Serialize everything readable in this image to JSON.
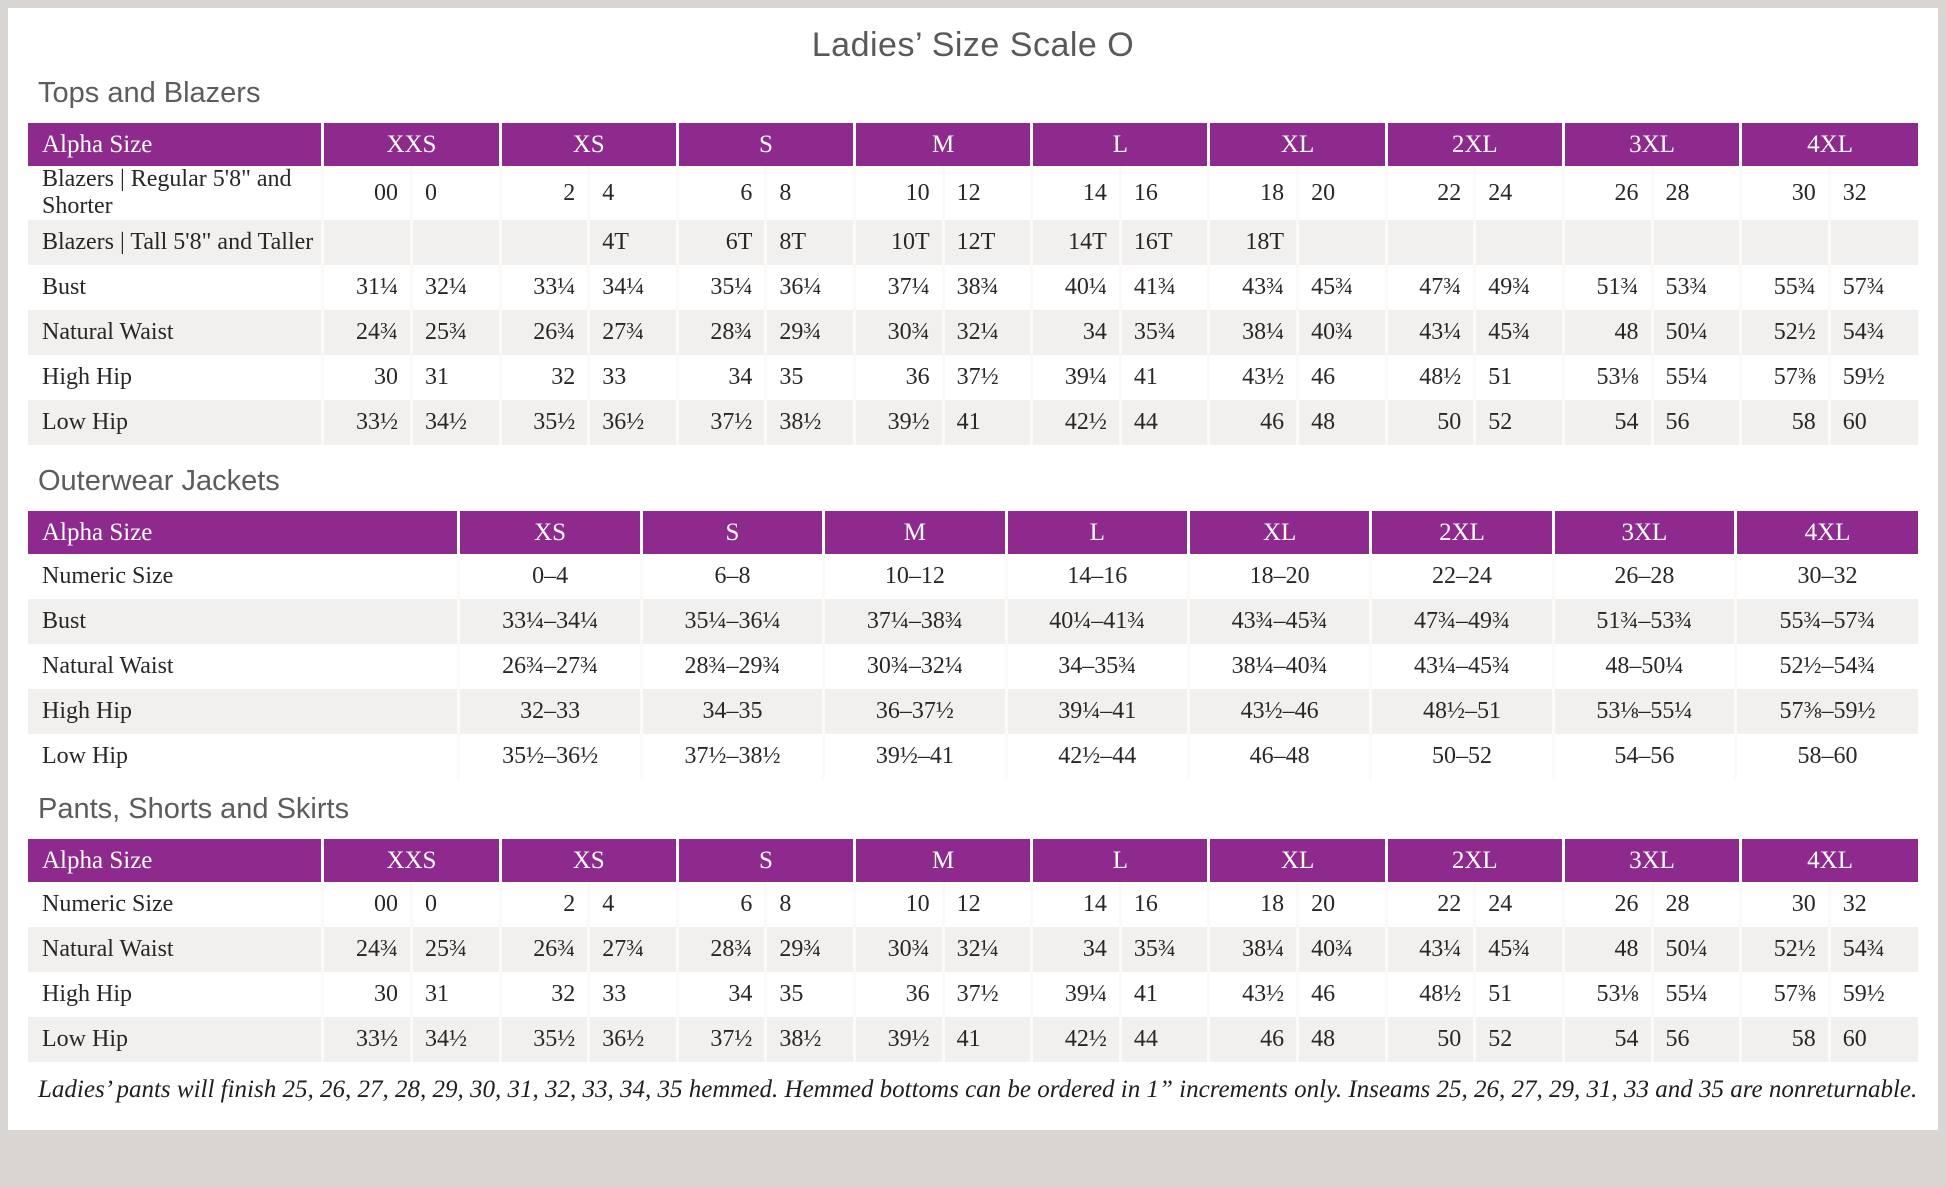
{
  "page": {
    "title": "Ladies’ Size Scale O",
    "footnote": "Ladies’ pants will finish 25, 26, 27, 28, 29, 30, 31, 32, 33, 34, 35 hemmed. Hemmed bottoms can be ordered in 1” increments only. Inseams 25, 26, 27, 29, 31, 33 and 35 are nonreturnable."
  },
  "colors": {
    "header_bg": "#8e2a8d",
    "header_text": "#ffffff",
    "stripe": "#f2f0ee",
    "frame": "#d8d5d3",
    "heading_text": "#5b5c5e",
    "body_text": "#272727"
  },
  "tables": [
    {
      "id": "tops-and-blazers",
      "heading": "Tops and Blazers",
      "layout": "paired",
      "corner_label": "Alpha Size",
      "groups": [
        "XXS",
        "XS",
        "S",
        "M",
        "L",
        "XL",
        "2XL",
        "3XL",
        "4XL"
      ],
      "rows": [
        {
          "label": "Blazers | Regular 5'8\" and Shorter",
          "values": [
            "00",
            "0",
            "2",
            "4",
            "6",
            "8",
            "10",
            "12",
            "14",
            "16",
            "18",
            "20",
            "22",
            "24",
            "26",
            "28",
            "30",
            "32"
          ]
        },
        {
          "label": "Blazers | Tall 5'8\" and Taller",
          "values": [
            "",
            "",
            "",
            "4T",
            "6T",
            "8T",
            "10T",
            "12T",
            "14T",
            "16T",
            "18T",
            "",
            "",
            "",
            "",
            "",
            "",
            ""
          ]
        },
        {
          "label": "Bust",
          "values": [
            "31¼",
            "32¼",
            "33¼",
            "34¼",
            "35¼",
            "36¼",
            "37¼",
            "38¾",
            "40¼",
            "41¾",
            "43¾",
            "45¾",
            "47¾",
            "49¾",
            "51¾",
            "53¾",
            "55¾",
            "57¾"
          ]
        },
        {
          "label": "Natural Waist",
          "values": [
            "24¾",
            "25¾",
            "26¾",
            "27¾",
            "28¾",
            "29¾",
            "30¾",
            "32¼",
            "34",
            "35¾",
            "38¼",
            "40¾",
            "43¼",
            "45¾",
            "48",
            "50¼",
            "52½",
            "54¾"
          ]
        },
        {
          "label": "High Hip",
          "values": [
            "30",
            "31",
            "32",
            "33",
            "34",
            "35",
            "36",
            "37½",
            "39¼",
            "41",
            "43½",
            "46",
            "48½",
            "51",
            "53⅛",
            "55¼",
            "57⅜",
            "59½"
          ]
        },
        {
          "label": "Low Hip",
          "values": [
            "33½",
            "34½",
            "35½",
            "36½",
            "37½",
            "38½",
            "39½",
            "41",
            "42½",
            "44",
            "46",
            "48",
            "50",
            "52",
            "54",
            "56",
            "58",
            "60"
          ]
        }
      ]
    },
    {
      "id": "outerwear-jackets",
      "heading": "Outerwear Jackets",
      "layout": "single",
      "corner_label": "Alpha Size",
      "groups": [
        "XS",
        "S",
        "M",
        "L",
        "XL",
        "2XL",
        "3XL",
        "4XL"
      ],
      "rows": [
        {
          "label": "Numeric Size",
          "values": [
            "0–4",
            "6–8",
            "10–12",
            "14–16",
            "18–20",
            "22–24",
            "26–28",
            "30–32"
          ]
        },
        {
          "label": "Bust",
          "values": [
            "33¼–34¼",
            "35¼–36¼",
            "37¼–38¾",
            "40¼–41¾",
            "43¾–45¾",
            "47¾–49¾",
            "51¾–53¾",
            "55¾–57¾"
          ]
        },
        {
          "label": "Natural Waist",
          "values": [
            "26¾–27¾",
            "28¾–29¾",
            "30¾–32¼",
            "34–35¾",
            "38¼–40¾",
            "43¼–45¾",
            "48–50¼",
            "52½–54¾"
          ]
        },
        {
          "label": "High Hip",
          "values": [
            "32–33",
            "34–35",
            "36–37½",
            "39¼–41",
            "43½–46",
            "48½–51",
            "53⅛–55¼",
            "57⅜–59½"
          ]
        },
        {
          "label": "Low Hip",
          "values": [
            "35½–36½",
            "37½–38½",
            "39½–41",
            "42½–44",
            "46–48",
            "50–52",
            "54–56",
            "58–60"
          ]
        }
      ]
    },
    {
      "id": "pants-shorts-and-skirts",
      "heading": "Pants, Shorts and Skirts",
      "layout": "paired",
      "corner_label": "Alpha Size",
      "groups": [
        "XXS",
        "XS",
        "S",
        "M",
        "L",
        "XL",
        "2XL",
        "3XL",
        "4XL"
      ],
      "rows": [
        {
          "label": "Numeric Size",
          "values": [
            "00",
            "0",
            "2",
            "4",
            "6",
            "8",
            "10",
            "12",
            "14",
            "16",
            "18",
            "20",
            "22",
            "24",
            "26",
            "28",
            "30",
            "32"
          ]
        },
        {
          "label": "Natural Waist",
          "values": [
            "24¾",
            "25¾",
            "26¾",
            "27¾",
            "28¾",
            "29¾",
            "30¾",
            "32¼",
            "34",
            "35¾",
            "38¼",
            "40¾",
            "43¼",
            "45¾",
            "48",
            "50¼",
            "52½",
            "54¾"
          ]
        },
        {
          "label": "High Hip",
          "values": [
            "30",
            "31",
            "32",
            "33",
            "34",
            "35",
            "36",
            "37½",
            "39¼",
            "41",
            "43½",
            "46",
            "48½",
            "51",
            "53⅛",
            "55¼",
            "57⅜",
            "59½"
          ]
        },
        {
          "label": "Low Hip",
          "values": [
            "33½",
            "34½",
            "35½",
            "36½",
            "37½",
            "38½",
            "39½",
            "41",
            "42½",
            "44",
            "46",
            "48",
            "50",
            "52",
            "54",
            "56",
            "58",
            "60"
          ]
        }
      ]
    }
  ]
}
